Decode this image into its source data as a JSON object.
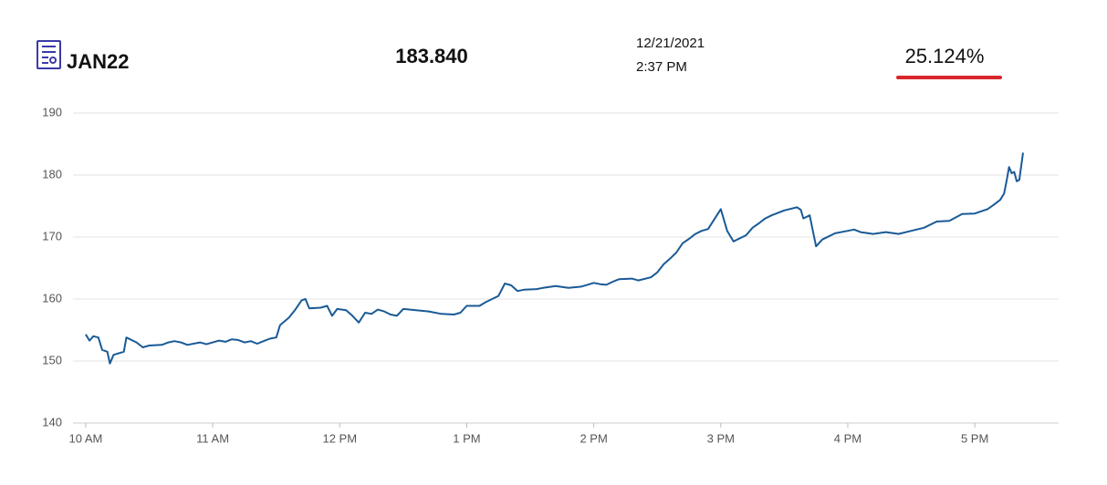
{
  "header": {
    "symbol": "JAN22",
    "price": "183.840",
    "date": "12/21/2021",
    "time": "2:37 PM",
    "change": "25.124%"
  },
  "chart_data": {
    "type": "line",
    "x": [
      10.0,
      10.03,
      10.06,
      10.1,
      10.13,
      10.17,
      10.19,
      10.22,
      10.3,
      10.32,
      10.4,
      10.45,
      10.5,
      10.6,
      10.65,
      10.7,
      10.75,
      10.8,
      10.9,
      10.95,
      11.0,
      11.05,
      11.1,
      11.15,
      11.2,
      11.25,
      11.3,
      11.35,
      11.4,
      11.45,
      11.5,
      11.53,
      11.6,
      11.65,
      11.7,
      11.73,
      11.76,
      11.85,
      11.9,
      11.94,
      11.98,
      12.05,
      12.1,
      12.15,
      12.2,
      12.25,
      12.3,
      12.35,
      12.4,
      12.45,
      12.5,
      12.6,
      12.7,
      12.8,
      12.9,
      12.95,
      13.0,
      13.1,
      13.15,
      13.2,
      13.25,
      13.3,
      13.35,
      13.4,
      13.45,
      13.55,
      13.6,
      13.7,
      13.8,
      13.9,
      13.95,
      14.0,
      14.05,
      14.1,
      14.15,
      14.2,
      14.3,
      14.35,
      14.45,
      14.5,
      14.55,
      14.6,
      14.65,
      14.7,
      14.75,
      14.8,
      14.85,
      14.9,
      15.0,
      15.05,
      15.1,
      15.2,
      15.25,
      15.3,
      15.35,
      15.4,
      15.5,
      15.6,
      15.63,
      15.65,
      15.7,
      15.75,
      15.8,
      15.9,
      16.0,
      16.05,
      16.1,
      16.2,
      16.3,
      16.4,
      16.5,
      16.6,
      16.7,
      16.8,
      16.9,
      17.0,
      17.1,
      17.15,
      17.2,
      17.23,
      17.25,
      17.27,
      17.29,
      17.31,
      17.33,
      17.35,
      17.38
    ],
    "values": [
      154.3,
      153.3,
      154.0,
      153.8,
      151.8,
      151.5,
      149.6,
      151.0,
      151.5,
      153.8,
      153.0,
      152.2,
      152.5,
      152.6,
      153.0,
      153.2,
      153.0,
      152.6,
      153.0,
      152.7,
      153.0,
      153.3,
      153.1,
      153.5,
      153.4,
      153.0,
      153.2,
      152.8,
      153.2,
      153.6,
      153.8,
      155.8,
      157.0,
      158.3,
      159.8,
      160.0,
      158.5,
      158.6,
      158.9,
      157.3,
      158.4,
      158.2,
      157.3,
      156.2,
      157.8,
      157.6,
      158.3,
      158.0,
      157.5,
      157.3,
      158.4,
      158.2,
      158.0,
      157.6,
      157.5,
      157.8,
      158.9,
      158.9,
      159.5,
      160.0,
      160.5,
      162.5,
      162.2,
      161.3,
      161.5,
      161.6,
      161.8,
      162.1,
      161.8,
      162.0,
      162.3,
      162.6,
      162.4,
      162.3,
      162.8,
      163.2,
      163.3,
      163.0,
      163.5,
      164.3,
      165.6,
      166.5,
      167.5,
      169.0,
      169.7,
      170.5,
      171.0,
      171.3,
      174.5,
      171.0,
      169.3,
      170.3,
      171.5,
      172.2,
      173.0,
      173.5,
      174.3,
      174.8,
      174.4,
      173.0,
      173.5,
      168.5,
      169.6,
      170.6,
      171.0,
      171.2,
      170.8,
      170.5,
      170.8,
      170.5,
      171.0,
      171.5,
      172.5,
      172.6,
      173.7,
      173.8,
      174.5,
      175.2,
      176.0,
      177.0,
      179.0,
      181.3,
      180.3,
      180.5,
      179.0,
      179.2,
      183.6
    ],
    "color": "#1a5a96",
    "xlim": [
      9.9,
      17.66
    ],
    "ylim": [
      140,
      190
    ],
    "xticks": [
      {
        "value": 10,
        "label": "10 AM"
      },
      {
        "value": 11,
        "label": "11 AM"
      },
      {
        "value": 12,
        "label": "12 PM"
      },
      {
        "value": 13,
        "label": "1 PM"
      },
      {
        "value": 14,
        "label": "2 PM"
      },
      {
        "value": 15,
        "label": "3 PM"
      },
      {
        "value": 16,
        "label": "4 PM"
      },
      {
        "value": 17,
        "label": "5 PM"
      }
    ],
    "yticks": [
      140,
      150,
      160,
      170,
      180,
      190
    ],
    "grid": true
  }
}
